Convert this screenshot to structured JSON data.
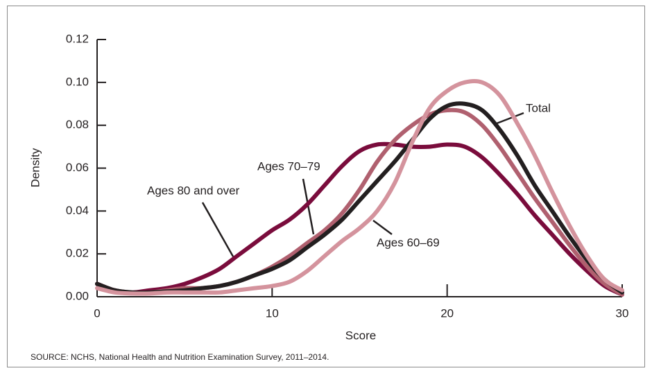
{
  "chart_data": {
    "type": "line",
    "x": [
      0,
      1,
      2,
      3,
      4,
      5,
      6,
      7,
      8,
      9,
      10,
      11,
      12,
      13,
      14,
      15,
      16,
      17,
      18,
      19,
      20,
      21,
      22,
      23,
      24,
      25,
      26,
      27,
      28,
      29,
      30
    ],
    "series": [
      {
        "name": "Ages 80 and over",
        "color": "#7a0c3c",
        "values": [
          0.006,
          0.003,
          0.002,
          0.003,
          0.004,
          0.006,
          0.009,
          0.013,
          0.019,
          0.025,
          0.031,
          0.036,
          0.043,
          0.052,
          0.061,
          0.068,
          0.071,
          0.071,
          0.07,
          0.07,
          0.071,
          0.07,
          0.065,
          0.057,
          0.048,
          0.038,
          0.029,
          0.02,
          0.012,
          0.005,
          0.001
        ]
      },
      {
        "name": "Ages 70–79",
        "color": "#b0606f",
        "values": [
          0.006,
          0.003,
          0.002,
          0.002,
          0.003,
          0.004,
          0.004,
          0.005,
          0.007,
          0.01,
          0.014,
          0.019,
          0.025,
          0.031,
          0.039,
          0.05,
          0.063,
          0.073,
          0.08,
          0.085,
          0.087,
          0.086,
          0.08,
          0.07,
          0.058,
          0.046,
          0.035,
          0.024,
          0.014,
          0.006,
          0.001
        ]
      },
      {
        "name": "Total",
        "color": "#231f20",
        "values": [
          0.006,
          0.003,
          0.002,
          0.002,
          0.0025,
          0.003,
          0.004,
          0.005,
          0.007,
          0.01,
          0.013,
          0.017,
          0.023,
          0.029,
          0.036,
          0.045,
          0.054,
          0.063,
          0.073,
          0.083,
          0.089,
          0.09,
          0.087,
          0.078,
          0.066,
          0.052,
          0.04,
          0.028,
          0.017,
          0.008,
          0.002
        ]
      },
      {
        "name": "Ages 60–69",
        "color": "#d4939d",
        "values": [
          0.004,
          0.002,
          0.0015,
          0.0015,
          0.002,
          0.002,
          0.002,
          0.002,
          0.003,
          0.004,
          0.005,
          0.007,
          0.012,
          0.019,
          0.026,
          0.032,
          0.04,
          0.053,
          0.072,
          0.088,
          0.096,
          0.1,
          0.1,
          0.094,
          0.081,
          0.066,
          0.049,
          0.033,
          0.019,
          0.008,
          0.003
        ]
      }
    ],
    "xlabel": "Score",
    "ylabel": "Density",
    "xlim": [
      0,
      30
    ],
    "xticks": [
      0,
      10,
      20,
      30
    ],
    "ylim": [
      0,
      0.12
    ],
    "yticks": [
      {
        "value": 0,
        "label": "0.00"
      },
      {
        "value": 0.02,
        "label": "0.02"
      },
      {
        "value": 0.04,
        "label": "0.04"
      },
      {
        "value": 0.06,
        "label": "0.06"
      },
      {
        "value": 0.08,
        "label": "0.08"
      },
      {
        "value": 0.1,
        "label": "0.10"
      },
      {
        "value": 0.12,
        "label": "0.12"
      }
    ],
    "source": "SOURCE: NCHS, National Health and Nutrition Examination Survey, 2011–2014."
  }
}
